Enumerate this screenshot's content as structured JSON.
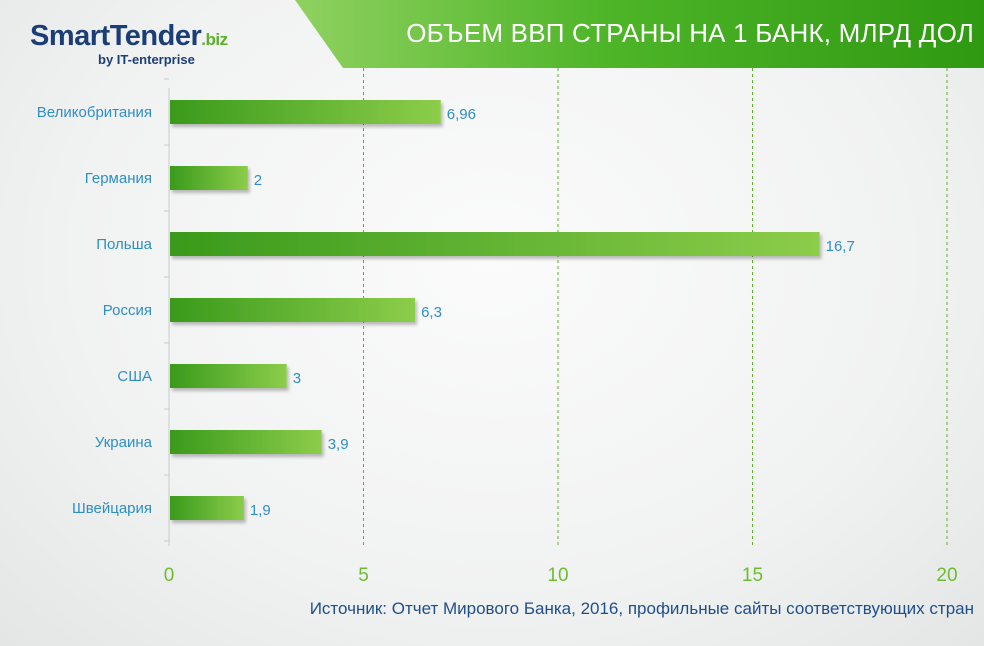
{
  "logo": {
    "name": "SmartTender",
    "domain": ".biz",
    "tagline": "by IT-enterprise"
  },
  "header": {
    "title": "ОБЪЕМ ВВП СТРАНЫ НА 1 БАНК, МЛРД ДОЛ"
  },
  "source": "Источник: Отчет Мирового Банка, 2016, профильные сайты соответствующих стран",
  "colors": {
    "accent_green": "#4eb528",
    "bar_dark": "#3a9a1c",
    "bar_light": "#8ccd4a",
    "label_blue": "#2e8fc6",
    "tick_green": "#6cbd2f",
    "grid_green": "#5cb02c",
    "title_navy": "#1c3e77"
  },
  "chart_data": {
    "type": "bar",
    "orientation": "horizontal",
    "categories": [
      "Великобритания",
      "Германия",
      "Польша",
      "Россия",
      "США",
      "Украина",
      "Швейцария"
    ],
    "values": [
      6.96,
      2,
      16.7,
      6.3,
      3,
      3.9,
      1.9
    ],
    "value_labels": [
      "6,96",
      "2",
      "16,7",
      "6,3",
      "3",
      "3,9",
      "1,9"
    ],
    "xlim": [
      0,
      20
    ],
    "xticks": [
      0,
      5,
      10,
      15,
      20
    ],
    "xtick_labels": [
      "0",
      "5",
      "10",
      "15",
      "20"
    ],
    "grid": "vertical dashed",
    "legend": "none"
  }
}
